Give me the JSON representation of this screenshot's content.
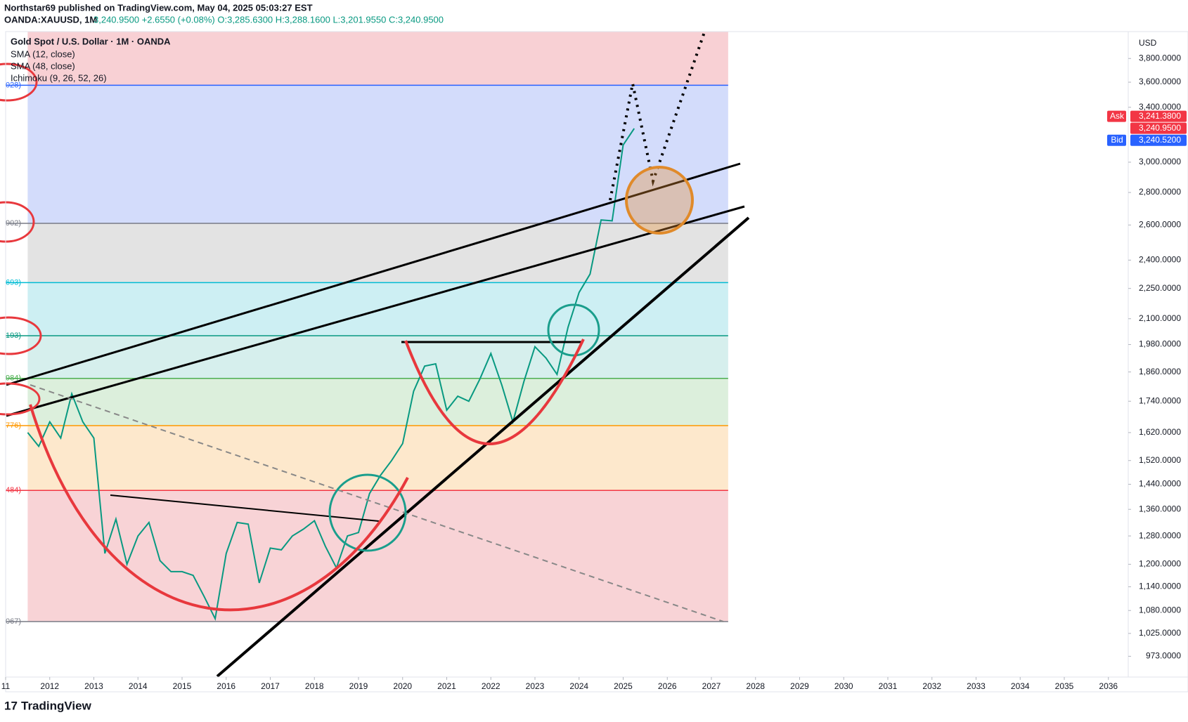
{
  "header": {
    "line1": "Northstar69 published on TradingView.com, May 04, 2025 05:03:27 EST",
    "symbol": "OANDA:XAUUSD, 1M",
    "quote": "3,240.9500 +2.6550 (+0.08%) O:3,285.6300 H:3,288.1600 L:3,201.9550 C:3,240.9500"
  },
  "legend": [
    "Gold Spot / U.S. Dollar · 1M · OANDA",
    "SMA (12, close)",
    "SMA (48, close)",
    "Ichimoku (9, 26, 52, 26)"
  ],
  "footer": "TradingView",
  "chart_data": {
    "type": "line",
    "currency": "USD",
    "log_scale": true,
    "grid": false,
    "xlim": [
      2011.0,
      2036.45
    ],
    "ylim": [
      928,
      4040
    ],
    "xticks": [
      {
        "value": 2011,
        "label": "11"
      },
      2012,
      2013,
      2014,
      2015,
      2016,
      2017,
      2018,
      2019,
      2020,
      2021,
      2022,
      2023,
      2024,
      2025,
      2026,
      2027,
      2028,
      2029,
      2030,
      2031,
      2032,
      2033,
      2034,
      2035,
      2036
    ],
    "yticks": [
      {
        "value": 973,
        "label": "973.0000"
      },
      {
        "value": 1025,
        "label": "1,025.0000"
      },
      {
        "value": 1080,
        "label": "1,080.0000"
      },
      {
        "value": 1140,
        "label": "1,140.0000"
      },
      {
        "value": 1200,
        "label": "1,200.0000"
      },
      {
        "value": 1280,
        "label": "1,280.0000"
      },
      {
        "value": 1360,
        "label": "1,360.0000"
      },
      {
        "value": 1440,
        "label": "1,440.0000"
      },
      {
        "value": 1520,
        "label": "1,520.0000"
      },
      {
        "value": 1620,
        "label": "1,620.0000"
      },
      {
        "value": 1740,
        "label": "1,740.0000"
      },
      {
        "value": 1860,
        "label": "1,860.0000"
      },
      {
        "value": 1980,
        "label": "1,980.0000"
      },
      {
        "value": 2100,
        "label": "2,100.0000"
      },
      {
        "value": 2250,
        "label": "2,250.0000"
      },
      {
        "value": 2400,
        "label": "2,400.0000"
      },
      {
        "value": 2600,
        "label": "2,600.0000"
      },
      {
        "value": 2800,
        "label": "2,800.0000"
      },
      {
        "value": 3000,
        "label": "3,000.0000"
      },
      {
        "value": 3400,
        "label": "3,400.0000"
      },
      {
        "value": 3600,
        "label": "3,600.0000"
      },
      {
        "value": 3800,
        "label": "3,800.0000"
      }
    ],
    "fib_range": [
      2011.5,
      2027.38
    ],
    "fib_top": {
      "value": 4040,
      "color": "#f8d0d4"
    },
    "fib_levels": [
      {
        "value": 3575,
        "label": "028)",
        "color": "#2962ff",
        "fill": "#d3dcfb"
      },
      {
        "value": 2610,
        "label": "902)",
        "color": "#787b86",
        "fill": "#e3e3e3"
      },
      {
        "value": 2280,
        "label": "693)",
        "color": "#00bcd4",
        "fill": "#cdeff3"
      },
      {
        "value": 2020,
        "label": "193)",
        "color": "#089981",
        "fill": "#d6efed"
      },
      {
        "value": 1833,
        "label": "984)",
        "color": "#4caf50",
        "fill": "#dcefdc"
      },
      {
        "value": 1646,
        "label": "776)",
        "color": "#ff9800",
        "fill": "#fde8cc"
      },
      {
        "value": 1420,
        "label": "484)",
        "color": "#f23645",
        "fill": "#f8d3d6"
      },
      {
        "value": 1053,
        "label": "067)",
        "color": "#787b86",
        "fill": "#f8d3d6"
      }
    ],
    "series": [
      {
        "name": "Gold Spot / U.S. Dollar",
        "color": "#089981",
        "x": [
          2011.5,
          2011.75,
          2012.0,
          2012.25,
          2012.5,
          2012.75,
          2013.0,
          2013.25,
          2013.5,
          2013.75,
          2014.0,
          2014.25,
          2014.5,
          2014.75,
          2015.0,
          2015.25,
          2015.5,
          2015.75,
          2016.0,
          2016.25,
          2016.5,
          2016.75,
          2017.0,
          2017.25,
          2017.5,
          2017.75,
          2018.0,
          2018.25,
          2018.5,
          2018.75,
          2019.0,
          2019.25,
          2019.5,
          2019.75,
          2020.0,
          2020.25,
          2020.5,
          2020.75,
          2021.0,
          2021.25,
          2021.5,
          2021.75,
          2022.0,
          2022.25,
          2022.5,
          2022.75,
          2023.0,
          2023.25,
          2023.5,
          2023.75,
          2024.0,
          2024.25,
          2024.5,
          2024.75,
          2025.0,
          2025.25
        ],
        "values": [
          1620,
          1570,
          1660,
          1600,
          1770,
          1660,
          1600,
          1230,
          1330,
          1200,
          1280,
          1320,
          1210,
          1180,
          1180,
          1170,
          1115,
          1060,
          1230,
          1320,
          1315,
          1150,
          1245,
          1240,
          1280,
          1300,
          1325,
          1250,
          1190,
          1280,
          1290,
          1410,
          1470,
          1520,
          1580,
          1780,
          1885,
          1895,
          1705,
          1760,
          1740,
          1830,
          1940,
          1805,
          1660,
          1820,
          1970,
          1920,
          1850,
          2060,
          2230,
          2325,
          2630,
          2625,
          3120,
          3240
        ]
      }
    ],
    "price_labels": [
      {
        "tag": "Ask",
        "value": 3241.38,
        "label": "3,241.3800",
        "color": "#f23645"
      },
      {
        "value": 3240.95,
        "label": "3,240.9500",
        "color": "#f23645"
      },
      {
        "tag": "Bid",
        "value": 3240.52,
        "label": "3,240.5200",
        "color": "#2962ff"
      }
    ]
  }
}
